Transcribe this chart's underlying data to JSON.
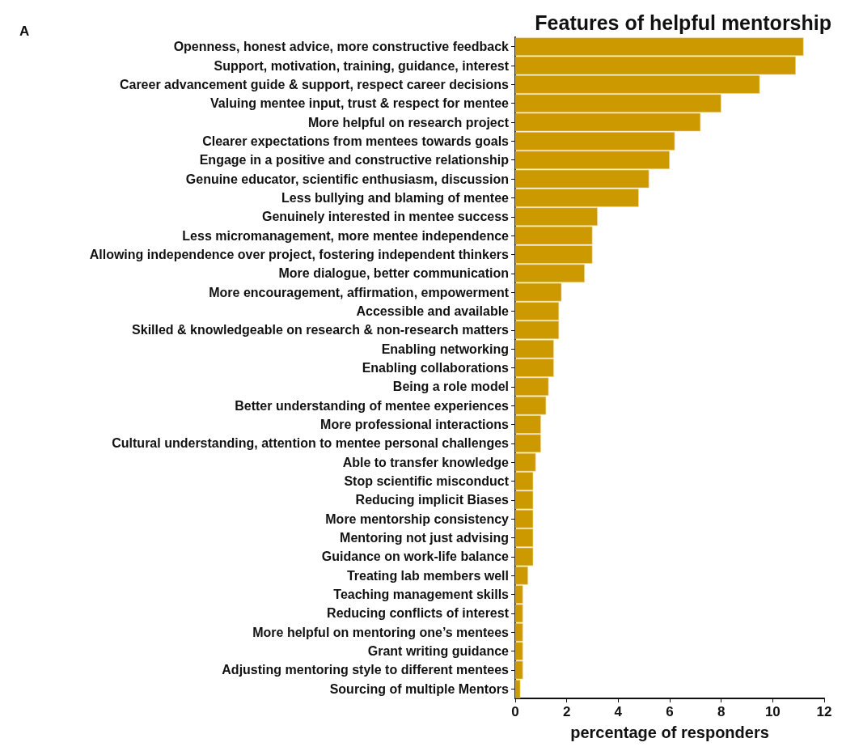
{
  "chart_data": {
    "type": "bar",
    "orientation": "horizontal",
    "title": "Features of helpful mentorship",
    "xlabel": "percentage of responders",
    "annotations": [
      "A"
    ],
    "categories": [
      "Openness, honest advice, more constructive feedback",
      "Support, motivation, training, guidance, interest",
      "Career advancement guide & support, respect career decisions",
      "Valuing mentee input, trust & respect for mentee",
      "More helpful on research project",
      "Clearer expectations from mentees towards goals",
      "Engage in a positive and constructive relationship",
      "Genuine educator, scientific enthusiasm, discussion",
      "Less bullying and blaming of mentee",
      "Genuinely interested in mentee success",
      "Less micromanagement, more mentee independence",
      "Allowing independence over project, fostering independent thinkers",
      "More dialogue, better communication",
      "More encouragement, affirmation, empowerment",
      "Accessible and available",
      "Skilled & knowledgeable on research & non-research matters",
      "Enabling networking",
      "Enabling collaborations",
      "Being a role model",
      "Better understanding of mentee experiences",
      "More professional interactions",
      "Cultural understanding, attention to mentee personal challenges",
      "Able to transfer knowledge",
      "Stop scientific misconduct",
      "Reducing implicit Biases",
      "More mentorship consistency",
      "Mentoring not just advising",
      "Guidance on work-life balance",
      "Treating lab members well",
      "Teaching management skills",
      "Reducing conflicts of interest",
      "More helpful on mentoring one’s mentees",
      "Grant writing guidance",
      "Adjusting mentoring style to different mentees",
      "Sourcing of multiple Mentors"
    ],
    "values": [
      11.2,
      10.9,
      9.5,
      8.0,
      7.2,
      6.2,
      6.0,
      5.2,
      4.8,
      3.2,
      3.0,
      3.0,
      2.7,
      1.8,
      1.7,
      1.7,
      1.5,
      1.5,
      1.3,
      1.2,
      1.0,
      1.0,
      0.8,
      0.7,
      0.7,
      0.7,
      0.7,
      0.7,
      0.5,
      0.3,
      0.3,
      0.3,
      0.3,
      0.3,
      0.2
    ],
    "color": "#cc9900",
    "xlim": [
      0,
      12
    ],
    "xticks": [
      0,
      2,
      4,
      6,
      8,
      10,
      12
    ],
    "grid": false
  }
}
